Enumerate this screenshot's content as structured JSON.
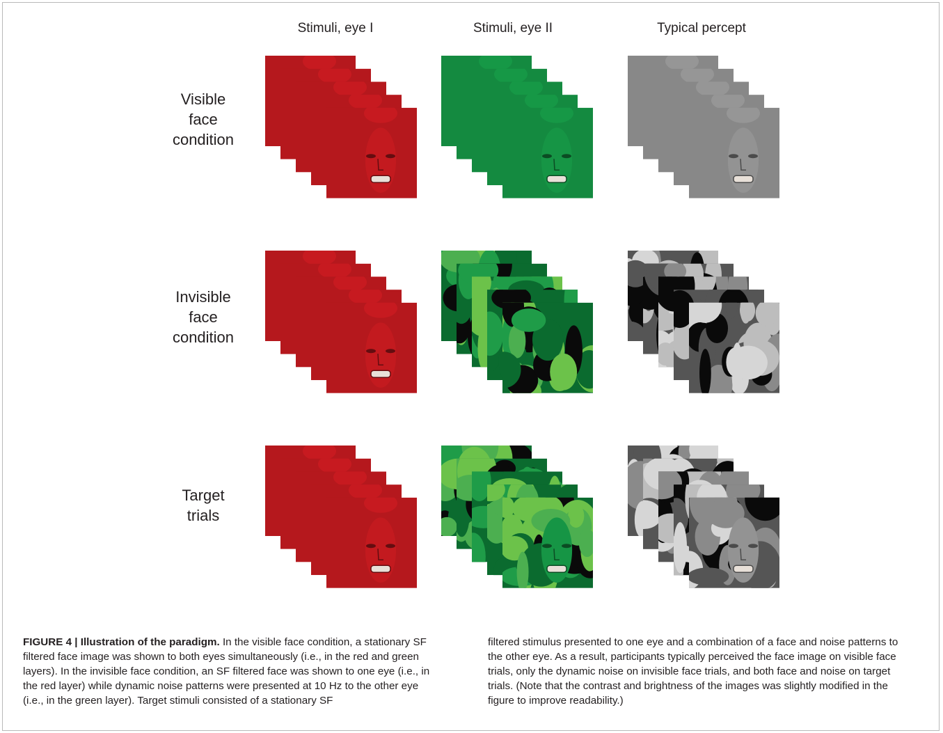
{
  "columns": {
    "eye1": "Stimuli, eye I",
    "eye2": "Stimuli, eye II",
    "percept": "Typical percept"
  },
  "rows": {
    "visible": {
      "line1": "Visible",
      "line2": "face",
      "line3": "condition"
    },
    "invisible": {
      "line1": "Invisible",
      "line2": "face",
      "line3": "condition"
    },
    "target": {
      "line1": "Target",
      "line2": "trials"
    }
  },
  "colors": {
    "red_face": "#b5181d",
    "green_face": "#148a40",
    "gray_face": "#888888",
    "noise_light_green": "#6cc24a",
    "noise_dark_green": "#0b6b2f",
    "noise_black": "#0a0a0a",
    "noise_light_gray": "#bdbdbd",
    "noise_dark_gray": "#555555"
  },
  "caption": {
    "title": "FIGURE 4 | Illustration of the paradigm.",
    "col1_text": " In the visible face condition, a stationary SF filtered face image was shown to both eyes simultaneously (i.e., in the red and green layers). In the invisible face condition, an SF filtered face was shown to one eye (i.e., in the red layer) while dynamic noise patterns were presented at 10 Hz to the other eye (i.e., in the green layer). Target stimuli consisted of a stationary SF",
    "col2_text": "filtered stimulus presented to one eye and a combination of a face and noise patterns to the other eye. As a result, participants typically perceived the face image on visible face trials, only the dynamic noise on invisible face trials, and both face and noise on target trials. (Note that the contrast and brightness of the images was slightly modified in the figure to improve readability.)"
  }
}
